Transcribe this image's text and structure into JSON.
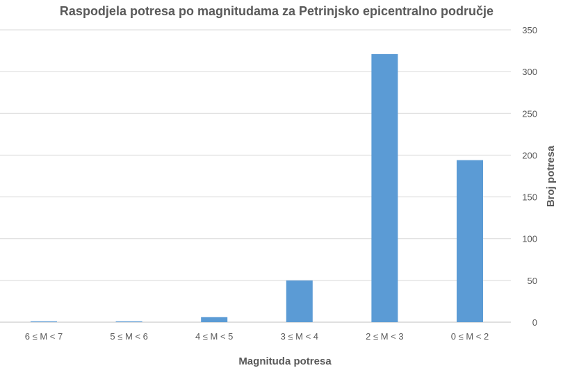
{
  "chart_data": {
    "type": "bar",
    "title": "Raspodjela potresa po magnitudama za Petrinjsko epicentralno područje",
    "xlabel": "Magnituda potresa",
    "ylabel": "Broj potresa",
    "categories": [
      "6 ≤ M < 7",
      "5 ≤ M < 6",
      "4 ≤ M < 5",
      "3 ≤ M < 4",
      "2 ≤ M < 3",
      "0 ≤ M < 2"
    ],
    "values": [
      1,
      1,
      6,
      50,
      321,
      194
    ],
    "ylim": [
      0,
      350
    ],
    "yticks": [
      0,
      50,
      100,
      150,
      200,
      250,
      300,
      350
    ],
    "y_axis_position": "right",
    "grid": true,
    "legend": "none",
    "bar_color": "#5b9bd5"
  }
}
